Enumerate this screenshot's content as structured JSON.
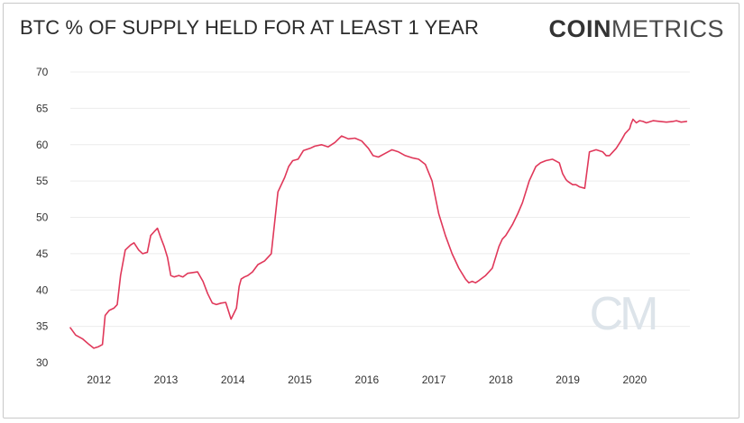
{
  "header": {
    "title": "BTC % OF SUPPLY HELD FOR AT LEAST 1 YEAR",
    "brand_bold": "COIN",
    "brand_light": "METRICS"
  },
  "watermark": "CM",
  "colors": {
    "line": "#e0385a",
    "grid": "#ececec",
    "text": "#333333"
  },
  "chart_data": {
    "type": "line",
    "title": "BTC % OF SUPPLY HELD FOR AT LEAST 1 YEAR",
    "xlabel": "",
    "ylabel": "",
    "xlim": [
      2011.6,
      2020.85
    ],
    "ylim": [
      30,
      70
    ],
    "grid": true,
    "y_ticks": [
      30,
      35,
      40,
      45,
      50,
      55,
      60,
      65,
      70
    ],
    "x_ticks": [
      2012,
      2013,
      2014,
      2015,
      2016,
      2017,
      2018,
      2019,
      2020
    ],
    "x_tick_labels": [
      "2012",
      "2013",
      "2014",
      "2015",
      "2016",
      "2017",
      "2018",
      "2019",
      "2020"
    ],
    "series": [
      {
        "name": "",
        "x": [
          2011.6,
          2011.68,
          2011.78,
          2011.88,
          2011.95,
          2012.02,
          2012.08,
          2012.12,
          2012.18,
          2012.25,
          2012.3,
          2012.35,
          2012.42,
          2012.5,
          2012.55,
          2012.62,
          2012.68,
          2012.75,
          2012.8,
          2012.85,
          2012.9,
          2012.95,
          2013.0,
          2013.05,
          2013.1,
          2013.15,
          2013.22,
          2013.28,
          2013.35,
          2013.42,
          2013.5,
          2013.58,
          2013.65,
          2013.72,
          2013.78,
          2013.85,
          2013.92,
          2014.0,
          2014.08,
          2014.12,
          2014.15,
          2014.2,
          2014.25,
          2014.32,
          2014.4,
          2014.5,
          2014.6,
          2014.7,
          2014.8,
          2014.86,
          2014.92,
          2015.0,
          2015.08,
          2015.18,
          2015.25,
          2015.35,
          2015.45,
          2015.55,
          2015.65,
          2015.75,
          2015.85,
          2015.95,
          2016.05,
          2016.12,
          2016.2,
          2016.3,
          2016.4,
          2016.5,
          2016.6,
          2016.7,
          2016.8,
          2016.9,
          2017.0,
          2017.1,
          2017.2,
          2017.3,
          2017.4,
          2017.5,
          2017.55,
          2017.6,
          2017.65,
          2017.7,
          2017.8,
          2017.9,
          2018.0,
          2018.05,
          2018.1,
          2018.2,
          2018.28,
          2018.35,
          2018.45,
          2018.55,
          2018.62,
          2018.7,
          2018.8,
          2018.9,
          2018.95,
          2019.0,
          2019.02,
          2019.05,
          2019.1,
          2019.15,
          2019.2,
          2019.28,
          2019.35,
          2019.45,
          2019.55,
          2019.6,
          2019.65,
          2019.7,
          2019.75,
          2019.82,
          2019.88,
          2019.95,
          2019.97,
          2020.0,
          2020.05,
          2020.1,
          2020.15,
          2020.2,
          2020.3,
          2020.4,
          2020.5,
          2020.6,
          2020.65,
          2020.72,
          2020.8
        ],
        "values": [
          34.8,
          33.8,
          33.3,
          32.5,
          32.0,
          32.2,
          32.5,
          36.5,
          37.2,
          37.5,
          38.0,
          42.0,
          45.5,
          46.2,
          46.5,
          45.5,
          45.0,
          45.2,
          47.5,
          48.0,
          48.5,
          47.2,
          46.0,
          44.5,
          42.0,
          41.8,
          42.0,
          41.8,
          42.3,
          42.4,
          42.5,
          41.2,
          39.5,
          38.2,
          38.0,
          38.2,
          38.3,
          36.0,
          37.5,
          40.5,
          41.5,
          41.8,
          42.0,
          42.5,
          43.5,
          44.0,
          45.0,
          53.5,
          55.5,
          57.0,
          57.8,
          58.0,
          59.2,
          59.5,
          59.8,
          60.0,
          59.7,
          60.3,
          61.2,
          60.8,
          60.9,
          60.5,
          59.5,
          58.5,
          58.3,
          58.8,
          59.3,
          59.0,
          58.5,
          58.2,
          58.0,
          57.3,
          55.0,
          50.5,
          47.5,
          45.0,
          43.0,
          41.5,
          41.0,
          41.2,
          41.0,
          41.3,
          42.0,
          43.0,
          46.0,
          47.0,
          47.5,
          49.0,
          50.5,
          52.0,
          55.0,
          57.0,
          57.5,
          57.8,
          58.0,
          57.5,
          56.0,
          55.2,
          55.0,
          54.8,
          54.5,
          54.5,
          54.2,
          54.0,
          59.0,
          59.3,
          59.0,
          58.5,
          58.5,
          59.0,
          59.5,
          60.5,
          61.5,
          62.2,
          62.8,
          63.5,
          63.0,
          63.3,
          63.2,
          63.0,
          63.3,
          63.2,
          63.1,
          63.2,
          63.3,
          63.1,
          63.2
        ]
      }
    ]
  }
}
